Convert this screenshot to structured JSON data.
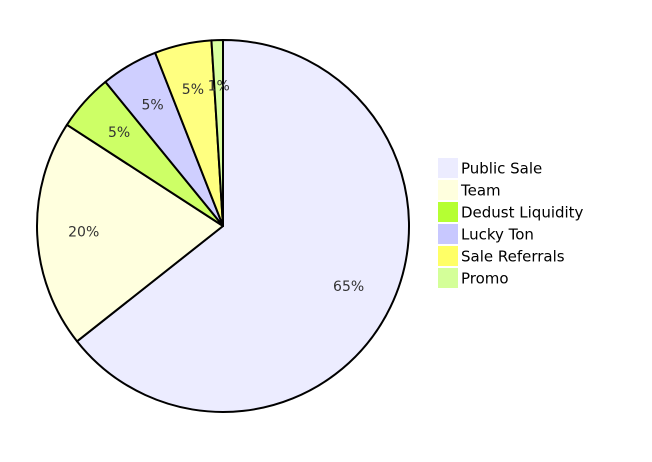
{
  "chart_data": {
    "type": "pie",
    "title": "",
    "legend_position": "right",
    "start_angle_deg": 0,
    "direction": "clockwise",
    "slices": [
      {
        "label": "Public Sale",
        "value": 65,
        "value_label": "65%",
        "color": "#ECECFF"
      },
      {
        "label": "Team",
        "value": 20,
        "value_label": "20%",
        "color": "#FFFFDE"
      },
      {
        "label": "Dedust Liquidity",
        "value": 5,
        "value_label": "5%",
        "color": "#CDFF66"
      },
      {
        "label": "Lucky Ton",
        "value": 5,
        "value_label": "5%",
        "color": "#CFCFFF"
      },
      {
        "label": "Sale Referrals",
        "value": 5,
        "value_label": "5%",
        "color": "#FFFF80"
      },
      {
        "label": "Promo",
        "value": 1,
        "value_label": "1%",
        "color": "#D8FFA0"
      }
    ]
  },
  "legend_swatch_colors": [
    "#ECECFF",
    "#FFFFDE",
    "#B5FF33",
    "#C8C8FF",
    "#FFFF66",
    "#D4FF99"
  ]
}
